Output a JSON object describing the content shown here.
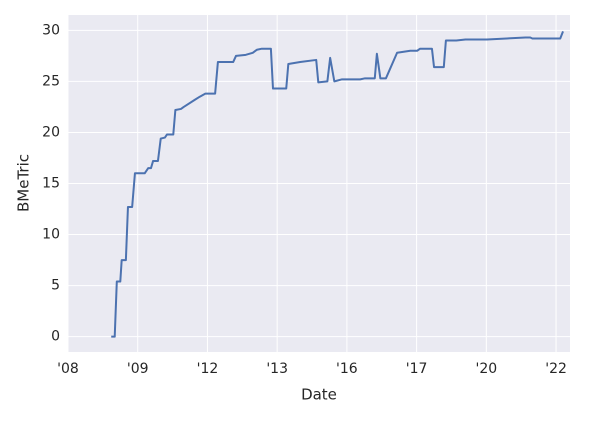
{
  "chart_data": {
    "type": "line",
    "xlabel": "Date",
    "ylabel": "BMeTric",
    "x": [
      0.62,
      0.67,
      0.7,
      0.75,
      0.77,
      0.83,
      0.86,
      0.92,
      0.96,
      1.1,
      1.15,
      1.19,
      1.22,
      1.29,
      1.33,
      1.39,
      1.42,
      1.51,
      1.54,
      1.62,
      1.66,
      1.82,
      1.89,
      1.97,
      2.11,
      2.15,
      2.37,
      2.41,
      2.55,
      2.65,
      2.71,
      2.78,
      2.91,
      2.94,
      3.13,
      3.16,
      3.33,
      3.56,
      3.59,
      3.72,
      3.76,
      3.82,
      3.93,
      4.19,
      4.26,
      4.4,
      4.43,
      4.48,
      4.56,
      4.72,
      4.91,
      5.01,
      5.05,
      5.22,
      5.25,
      5.39,
      5.42,
      5.57,
      5.7,
      6.01,
      6.56,
      6.63,
      6.66,
      7.06,
      7.1
    ],
    "series": [
      {
        "name": "BMeTric",
        "color": "#4c72b0",
        "values": [
          0,
          0,
          5.4,
          5.4,
          7.5,
          7.5,
          12.7,
          12.7,
          16,
          16,
          16.5,
          16.5,
          17.2,
          17.2,
          19.4,
          19.5,
          19.8,
          19.8,
          22.2,
          22.3,
          22.5,
          23.2,
          23.5,
          23.8,
          23.8,
          26.9,
          26.9,
          27.5,
          27.6,
          27.8,
          28.1,
          28.2,
          28.2,
          24.3,
          24.3,
          26.7,
          26.9,
          27.1,
          24.9,
          25,
          27.3,
          25,
          25.2,
          25.2,
          25.3,
          25.3,
          27.7,
          25.3,
          25.3,
          27.8,
          28,
          28,
          28.2,
          28.2,
          26.4,
          26.4,
          29,
          29,
          29.1,
          29.1,
          29.3,
          29.3,
          29.2,
          29.2,
          29.9
        ]
      }
    ],
    "xlim": [
      0,
      7.2
    ],
    "xticks": [
      {
        "value": 0,
        "label": "'08"
      },
      {
        "value": 1,
        "label": "'09"
      },
      {
        "value": 2,
        "label": "'12"
      },
      {
        "value": 3,
        "label": "'13"
      },
      {
        "value": 4,
        "label": "'16"
      },
      {
        "value": 5,
        "label": "'17"
      },
      {
        "value": 6,
        "label": "'20"
      },
      {
        "value": 7,
        "label": "'22"
      }
    ],
    "ylim": [
      -1.5,
      31.5
    ],
    "yticks": [
      0,
      5,
      10,
      15,
      20,
      25,
      30
    ],
    "grid": true,
    "background": "#eaeaf2"
  }
}
